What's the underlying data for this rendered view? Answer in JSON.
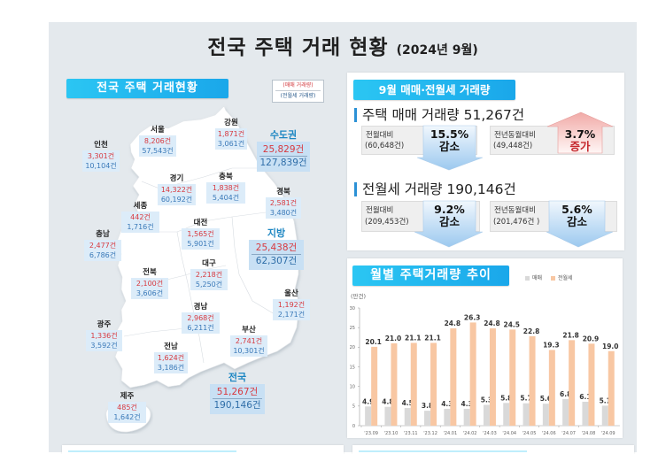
{
  "page": {
    "title": "전국 주택 거래 현황",
    "subtitle": "(2024년 9월)"
  },
  "map": {
    "header": "전국 주택 거래현황",
    "legend": {
      "sale": "(매매 거래량)",
      "rent": "(전월세 거래량)"
    },
    "regions": [
      {
        "name": "강원",
        "sale": "1,871건",
        "rent": "3,061건"
      },
      {
        "name": "서울",
        "sale": "8,206건",
        "rent": "57,543건"
      },
      {
        "name": "인천",
        "sale": "3,301건",
        "rent": "10,104건"
      },
      {
        "name": "경기",
        "sale": "14,322건",
        "rent": "60,192건"
      },
      {
        "name": "충북",
        "sale": "1,838건",
        "rent": "5,404건"
      },
      {
        "name": "경북",
        "sale": "2,581건",
        "rent": "3,480건"
      },
      {
        "name": "세종",
        "sale": "442건",
        "rent": "1,716건"
      },
      {
        "name": "대전",
        "sale": "1,565건",
        "rent": "5,901건"
      },
      {
        "name": "충남",
        "sale": "2,477건",
        "rent": "6,786건"
      },
      {
        "name": "대구",
        "sale": "2,218건",
        "rent": "5,250건"
      },
      {
        "name": "전북",
        "sale": "2,100건",
        "rent": "3,606건"
      },
      {
        "name": "울산",
        "sale": "1,192건",
        "rent": "2,171건"
      },
      {
        "name": "경남",
        "sale": "2,968건",
        "rent": "6,211건"
      },
      {
        "name": "광주",
        "sale": "1,336건",
        "rent": "3,592건"
      },
      {
        "name": "부산",
        "sale": "2,741건",
        "rent": "10,301건"
      },
      {
        "name": "전남",
        "sale": "1,624건",
        "rent": "3,186건"
      },
      {
        "name": "제주",
        "sale": "485건",
        "rent": "1,642건"
      }
    ],
    "summaries": [
      {
        "name": "수도권",
        "sale": "25,829건",
        "rent": "127,839건"
      },
      {
        "name": "지방",
        "sale": "25,438건",
        "rent": "62,307건"
      },
      {
        "name": "전국",
        "sale": "51,267건",
        "rent": "190,146건"
      }
    ]
  },
  "volume": {
    "header": "9월 매매·전월세 거래량",
    "sale": {
      "title": "주택 매매 거래량 51,267건",
      "mom": {
        "label": "전월대비",
        "base": "(60,648건)",
        "pct": "15.5%",
        "dir": "감소"
      },
      "yoy": {
        "label": "전년동월대비",
        "base": "(49,448건)",
        "pct": "3.7%",
        "dir": "증가"
      }
    },
    "rent": {
      "title": "전월세 거래량 190,146건",
      "mom": {
        "label": "전월대비",
        "base": "(209,453건)",
        "pct": "9.2%",
        "dir": "감소"
      },
      "yoy": {
        "label": "전년동월대비",
        "base": "(201,476건 )",
        "pct": "5.6%",
        "dir": "감소"
      }
    }
  },
  "trend": {
    "header": "월별 주택거래량 추이"
  },
  "colors": {
    "accent": "#1aa7ea",
    "sale_text": "#d8393f",
    "rent_text": "#3a79b8"
  },
  "chart_data": {
    "type": "bar",
    "title": "월별 주택거래량 추이",
    "xlabel": "",
    "ylabel": "(만건)",
    "ylim": [
      0,
      30
    ],
    "yticks": [
      0,
      5,
      10,
      15,
      20,
      25,
      30
    ],
    "grid": false,
    "legend": "top-right",
    "categories": [
      "'23.09",
      "'23.10",
      "'23.11",
      "'23.12",
      "'24.01",
      "'24.02",
      "'24.03",
      "'24.04",
      "'24.05",
      "'24.06",
      "'24.07",
      "'24.08",
      "'24.09"
    ],
    "series": [
      {
        "name": "매매",
        "color": "#d9d9d9",
        "values": [
          4.9,
          4.8,
          4.5,
          3.8,
          4.3,
          4.3,
          5.3,
          5.8,
          5.7,
          5.6,
          6.8,
          6.1,
          5.1
        ]
      },
      {
        "name": "전월세",
        "color": "#f8c7a3",
        "values": [
          20.1,
          21.0,
          21.1,
          21.1,
          24.8,
          26.3,
          24.8,
          24.5,
          22.8,
          19.3,
          21.8,
          20.9,
          19.0
        ]
      }
    ]
  }
}
